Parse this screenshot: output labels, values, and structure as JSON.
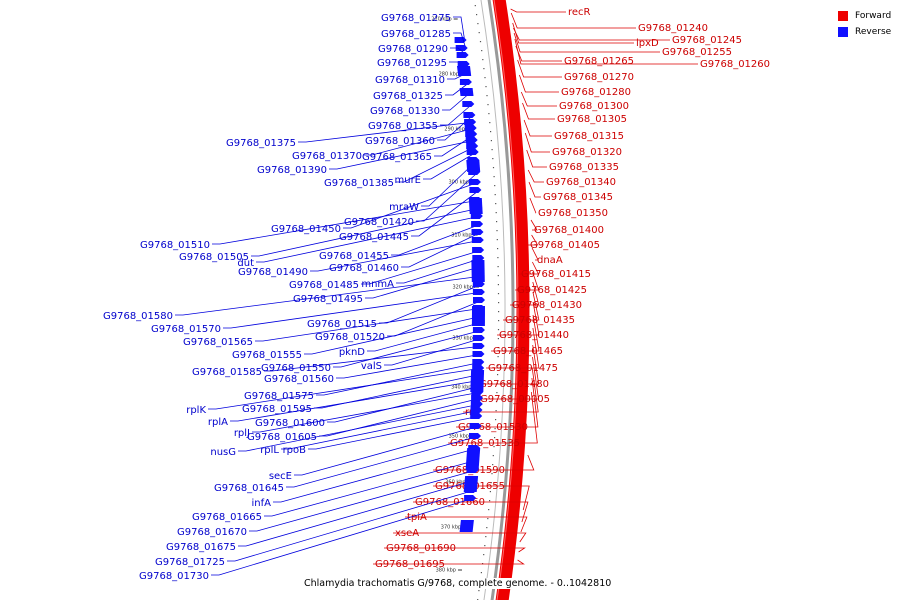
{
  "caption": "Chlamydia trachomatis G/9768, complete genome. - 0..1042810",
  "legend": [
    {
      "label": "Forward",
      "color": "#ee0000"
    },
    {
      "label": "Reverse",
      "color": "#1010ff"
    }
  ],
  "colors": {
    "forward": "#ee0000",
    "reverse": "#1010ff",
    "backbone": "#999999"
  },
  "scale_ticks": [
    "270 kbp",
    "280 kbp",
    "290 kbp",
    "300 kbp",
    "310 kbp",
    "320 kbp",
    "330 kbp",
    "340 kbp",
    "350 kbp",
    "360 kbp",
    "370 kbp",
    "380 kbp"
  ],
  "forward_genes": [
    "recR",
    "G9768_01240",
    "lpxD",
    "G9768_01245",
    "G9768_01255",
    "G9768_01260",
    "G9768_01265",
    "G9768_01270",
    "G9768_01280",
    "G9768_01300",
    "G9768_01305",
    "G9768_01315",
    "G9768_01320",
    "G9768_01335",
    "G9768_01340",
    "G9768_01345",
    "G9768_01350",
    "G9768_01400",
    "G9768_01405",
    "dnaA",
    "G9768_01415",
    "G9768_01425",
    "G9768_01430",
    "G9768_01435",
    "G9768_01440",
    "G9768_01465",
    "G9768_01475",
    "G9768_01480",
    "G9768_00005",
    "rnc",
    "G9768_01530",
    "G9768_01535",
    "G9768_01590",
    "G9768_01655",
    "G9768_01660",
    "tpiA",
    "xseA",
    "G9768_01690",
    "G9768_01695"
  ],
  "reverse_genes": [
    "G9768_01275",
    "G9768_01285",
    "G9768_01290",
    "G9768_01295",
    "G9768_01310",
    "G9768_01325",
    "G9768_01330",
    "G9768_01355",
    "G9768_01360",
    "G9768_01375",
    "G9768_01370",
    "G9768_01365",
    "G9768_01390",
    "G9768_01385",
    "murE",
    "mraW",
    "G9768_01420",
    "G9768_01450",
    "G9768_01445",
    "G9768_01510",
    "G9768_01505",
    "dut",
    "G9768_01455",
    "G9768_01460",
    "G9768_01490",
    "G9768_01485",
    "mnmA",
    "G9768_01495",
    "G9768_01580",
    "G9768_01515",
    "G9768_01570",
    "G9768_01520",
    "G9768_01565",
    "G9768_01555",
    "pknD",
    "G9768_01550",
    "valS",
    "G9768_01585",
    "G9768_01560",
    "G9768_01575",
    "rplK",
    "G9768_01595",
    "rplA",
    "G9768_01600",
    "rplJ",
    "G9768_01605",
    "nusG",
    "rplL",
    "rpoB",
    "secE",
    "G9768_01645",
    "infA",
    "G9768_01665",
    "G9768_01670",
    "G9768_01675",
    "G9768_01725",
    "G9768_01730"
  ]
}
